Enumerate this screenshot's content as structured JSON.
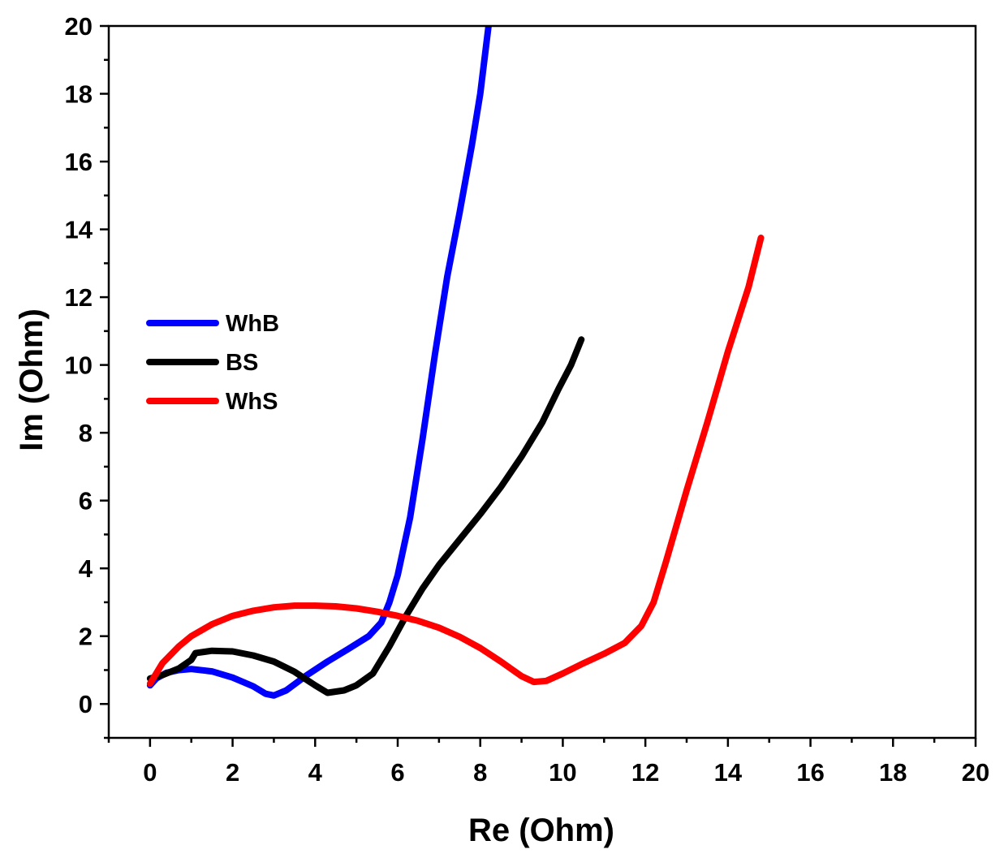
{
  "chart_data": {
    "type": "line",
    "title": "",
    "xlabel": "Re (Ohm)",
    "ylabel": "Im (Ohm)",
    "xlim": [
      -1,
      20
    ],
    "ylim": [
      -1,
      20
    ],
    "x_ticks": [
      0,
      2,
      4,
      6,
      8,
      10,
      12,
      14,
      16,
      18,
      20
    ],
    "x_tick_labels": [
      "0",
      "2",
      "4",
      "6",
      "8",
      "10",
      "12",
      "14",
      "16",
      "18",
      "20"
    ],
    "y_ticks": [
      0,
      2,
      4,
      6,
      8,
      10,
      12,
      14,
      16,
      18,
      20
    ],
    "y_tick_labels": [
      "0",
      "2",
      "4",
      "6",
      "8",
      "10",
      "12",
      "14",
      "16",
      "18",
      "20"
    ],
    "grid": false,
    "legend_position": "middle-left",
    "series": [
      {
        "name": "WhB",
        "color": "#0000ff",
        "points": [
          [
            0.0,
            0.55
          ],
          [
            0.15,
            0.75
          ],
          [
            0.4,
            0.92
          ],
          [
            0.7,
            1.0
          ],
          [
            1.0,
            1.03
          ],
          [
            1.5,
            0.96
          ],
          [
            2.0,
            0.78
          ],
          [
            2.5,
            0.52
          ],
          [
            2.8,
            0.3
          ],
          [
            3.0,
            0.25
          ],
          [
            3.3,
            0.4
          ],
          [
            3.8,
            0.85
          ],
          [
            4.3,
            1.25
          ],
          [
            4.8,
            1.62
          ],
          [
            5.3,
            2.0
          ],
          [
            5.6,
            2.4
          ],
          [
            5.8,
            3.0
          ],
          [
            6.0,
            3.8
          ],
          [
            6.3,
            5.5
          ],
          [
            6.6,
            7.8
          ],
          [
            6.9,
            10.3
          ],
          [
            7.2,
            12.6
          ],
          [
            7.5,
            14.5
          ],
          [
            7.8,
            16.5
          ],
          [
            8.0,
            18.0
          ],
          [
            8.2,
            20.0
          ]
        ]
      },
      {
        "name": "BS",
        "color": "#000000",
        "points": [
          [
            0.0,
            0.75
          ],
          [
            0.3,
            0.85
          ],
          [
            0.7,
            1.05
          ],
          [
            1.0,
            1.3
          ],
          [
            1.1,
            1.5
          ],
          [
            1.5,
            1.57
          ],
          [
            2.0,
            1.55
          ],
          [
            2.5,
            1.43
          ],
          [
            3.0,
            1.25
          ],
          [
            3.5,
            0.95
          ],
          [
            4.0,
            0.55
          ],
          [
            4.3,
            0.33
          ],
          [
            4.7,
            0.4
          ],
          [
            5.0,
            0.55
          ],
          [
            5.4,
            0.9
          ],
          [
            5.8,
            1.7
          ],
          [
            6.2,
            2.6
          ],
          [
            6.6,
            3.4
          ],
          [
            7.0,
            4.1
          ],
          [
            7.5,
            4.85
          ],
          [
            8.0,
            5.6
          ],
          [
            8.5,
            6.4
          ],
          [
            9.0,
            7.3
          ],
          [
            9.5,
            8.3
          ],
          [
            9.9,
            9.3
          ],
          [
            10.2,
            10.0
          ],
          [
            10.45,
            10.75
          ]
        ]
      },
      {
        "name": "WhS",
        "color": "#ff0000",
        "points": [
          [
            0.0,
            0.6
          ],
          [
            0.3,
            1.2
          ],
          [
            0.7,
            1.7
          ],
          [
            1.0,
            2.0
          ],
          [
            1.5,
            2.35
          ],
          [
            2.0,
            2.6
          ],
          [
            2.5,
            2.75
          ],
          [
            3.0,
            2.85
          ],
          [
            3.5,
            2.9
          ],
          [
            4.0,
            2.9
          ],
          [
            4.5,
            2.88
          ],
          [
            5.0,
            2.82
          ],
          [
            5.5,
            2.72
          ],
          [
            6.0,
            2.6
          ],
          [
            6.5,
            2.45
          ],
          [
            7.0,
            2.25
          ],
          [
            7.5,
            1.98
          ],
          [
            8.0,
            1.65
          ],
          [
            8.5,
            1.25
          ],
          [
            9.0,
            0.82
          ],
          [
            9.3,
            0.65
          ],
          [
            9.6,
            0.68
          ],
          [
            10.0,
            0.9
          ],
          [
            10.5,
            1.2
          ],
          [
            11.0,
            1.48
          ],
          [
            11.5,
            1.8
          ],
          [
            11.9,
            2.3
          ],
          [
            12.2,
            3.0
          ],
          [
            12.5,
            4.2
          ],
          [
            13.0,
            6.3
          ],
          [
            13.5,
            8.3
          ],
          [
            14.0,
            10.4
          ],
          [
            14.5,
            12.3
          ],
          [
            14.8,
            13.75
          ]
        ]
      }
    ]
  }
}
